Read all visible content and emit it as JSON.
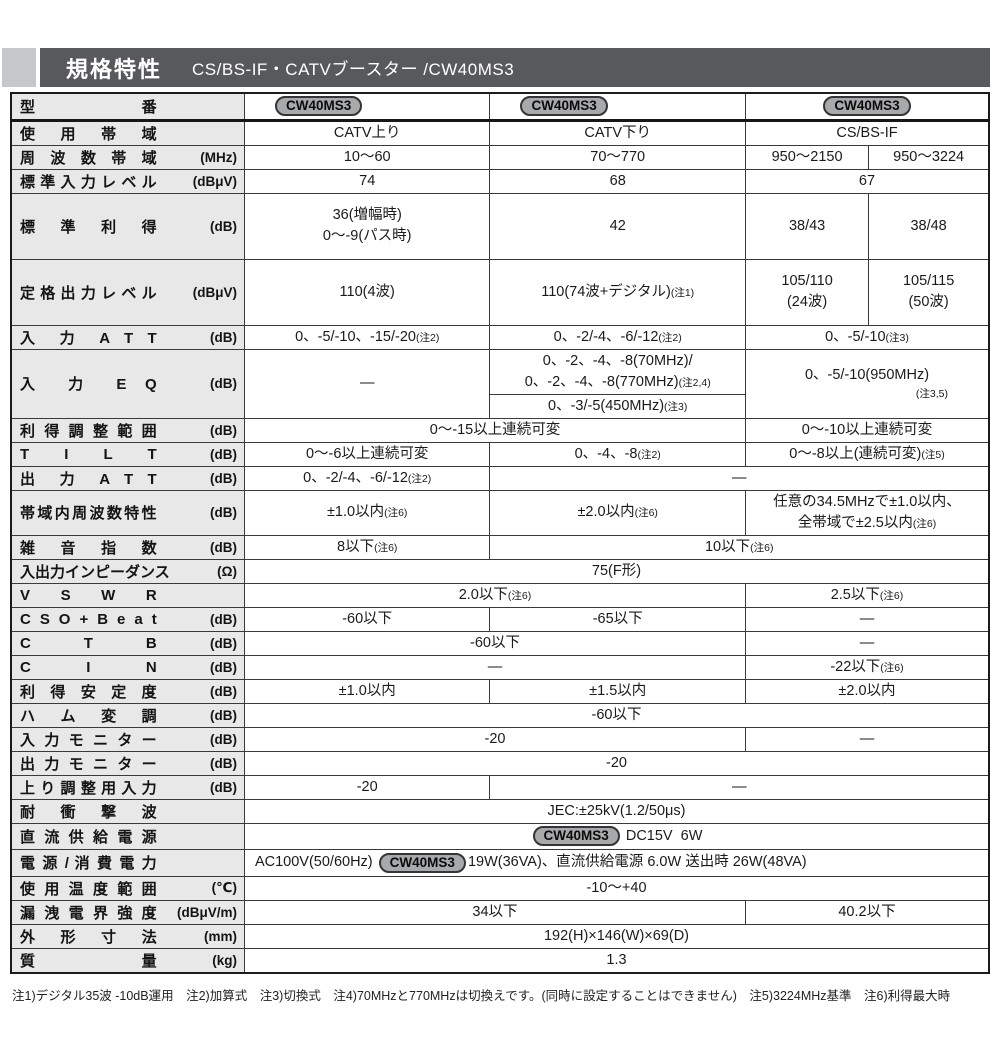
{
  "header": {
    "title": "規格特性",
    "subtitle": "CS/BS-IF・CATVブースター /CW40MS3"
  },
  "model_badge": "CW40MS3",
  "table": {
    "rows": [
      {
        "key": "model-number",
        "label": "型 番",
        "unit": "",
        "cells": [
          {
            "span": 1,
            "align": "bleft",
            "lines": [
              [
                {
                  "b": "CW40MS3"
                }
              ]
            ]
          },
          {
            "span": 1,
            "align": "bleft",
            "lines": [
              [
                {
                  "b": "CW40MS3"
                }
              ]
            ]
          },
          {
            "span": 2,
            "lines": [
              [
                {
                  "b": "CW40MS3"
                }
              ]
            ]
          }
        ]
      },
      {
        "key": "band-usage",
        "label": "使 用 帯 域",
        "unit": "",
        "cells": [
          {
            "span": 1,
            "lines": [
              [
                {
                  "t": "CATV上り"
                }
              ]
            ]
          },
          {
            "span": 1,
            "lines": [
              [
                {
                  "t": "CATV下り"
                }
              ]
            ]
          },
          {
            "span": 2,
            "lines": [
              [
                {
                  "t": "CS/BS-IF"
                }
              ]
            ]
          }
        ]
      },
      {
        "key": "frequency-range",
        "label": "周 波 数 帯 域",
        "unit": "(MHz)",
        "cells": [
          {
            "span": 1,
            "lines": [
              [
                {
                  "t": "10〜60"
                }
              ]
            ]
          },
          {
            "span": 1,
            "lines": [
              [
                {
                  "t": "70〜770"
                }
              ]
            ]
          },
          {
            "span": 1,
            "lines": [
              [
                {
                  "t": "950〜2150"
                }
              ]
            ]
          },
          {
            "span": 1,
            "lines": [
              [
                {
                  "t": "950〜3224"
                }
              ]
            ]
          }
        ]
      },
      {
        "key": "standard-input-level",
        "label": "標準入力レベル",
        "unit": "(dBμV)",
        "cells": [
          {
            "span": 1,
            "lines": [
              [
                {
                  "t": "74"
                }
              ]
            ]
          },
          {
            "span": 1,
            "lines": [
              [
                {
                  "t": "68"
                }
              ]
            ]
          },
          {
            "span": 2,
            "lines": [
              [
                {
                  "t": "67"
                }
              ]
            ]
          }
        ]
      },
      {
        "key": "standard-gain",
        "label": "標 準 利 得",
        "unit": "(dB)",
        "cells": [
          {
            "span": 1,
            "lines": [
              [
                {
                  "t": "36(増幅時)"
                }
              ],
              [
                {
                  "t": "0〜-9(パス時)"
                }
              ]
            ]
          },
          {
            "span": 1,
            "lines": [
              [
                {
                  "t": "42"
                }
              ]
            ]
          },
          {
            "span": 1,
            "lines": [
              [
                {
                  "t": "38/43"
                }
              ]
            ]
          },
          {
            "span": 1,
            "lines": [
              [
                {
                  "t": "38/48"
                }
              ]
            ]
          }
        ]
      },
      {
        "key": "rated-output-level",
        "label": "定格出力レベル",
        "unit": "(dBμV)",
        "cells": [
          {
            "span": 1,
            "lines": [
              [
                {
                  "t": "110(4波)"
                }
              ]
            ]
          },
          {
            "span": 1,
            "lines": [
              [
                {
                  "t": "110(74波+デジタル)"
                },
                {
                  "n": "(注1)"
                }
              ]
            ]
          },
          {
            "span": 1,
            "lines": [
              [
                {
                  "t": "105/110"
                }
              ],
              [
                {
                  "t": "(24波)"
                }
              ]
            ]
          },
          {
            "span": 1,
            "lines": [
              [
                {
                  "t": "105/115"
                }
              ],
              [
                {
                  "t": "(50波)"
                }
              ]
            ]
          }
        ]
      },
      {
        "key": "input-att",
        "label": "入 力 A T T",
        "unit": "(dB)",
        "cells": [
          {
            "span": 1,
            "lines": [
              [
                {
                  "t": "0、-5/-10、-15/-20"
                },
                {
                  "n": "(注2)"
                }
              ]
            ]
          },
          {
            "span": 1,
            "lines": [
              [
                {
                  "t": "0、-2/-4、-6/-12"
                },
                {
                  "n": "(注2)"
                }
              ]
            ]
          },
          {
            "span": 2,
            "lines": [
              [
                {
                  "t": "0、-5/-10"
                },
                {
                  "n": "(注3)"
                }
              ]
            ]
          }
        ]
      },
      {
        "key": "input-eq",
        "label": "入 力 E Q",
        "unit": "(dB)",
        "labelRowspan": 2,
        "cells": [
          {
            "span": 1,
            "rowspan": 2,
            "lines": [
              [
                {
                  "t": "—"
                }
              ]
            ]
          },
          {
            "span": 1,
            "lines": [
              [
                {
                  "t": "0、-2、-4、-8(70MHz)/"
                }
              ],
              [
                {
                  "t": "0、-2、-4、-8(770MHz)"
                },
                {
                  "n": "(注2,4)"
                }
              ]
            ]
          },
          {
            "span": 2,
            "rowspan": 2,
            "lines": [
              [
                {
                  "t": "0、-5/-10(950MHz)"
                }
              ],
              [
                {
                  "n": "(注3,5)",
                  "r": 1
                }
              ]
            ]
          }
        ]
      },
      {
        "key": "input-eq",
        "cont": true,
        "cells": [
          {
            "span": 1,
            "lines": [
              [
                {
                  "t": "0、-3/-5(450MHz)"
                },
                {
                  "n": "(注3)"
                }
              ]
            ]
          }
        ]
      },
      {
        "key": "gain-adjust-range",
        "label": "利 得 調 整 範 囲",
        "unit": "(dB)",
        "cells": [
          {
            "span": 2,
            "lines": [
              [
                {
                  "t": "0〜-15以上連続可変"
                }
              ]
            ]
          },
          {
            "span": 2,
            "lines": [
              [
                {
                  "t": "0〜-10以上連続可変"
                }
              ]
            ]
          }
        ]
      },
      {
        "key": "tilt",
        "label": "T I L T",
        "unit": "(dB)",
        "cells": [
          {
            "span": 1,
            "lines": [
              [
                {
                  "t": "0〜-6以上連続可変"
                }
              ]
            ]
          },
          {
            "span": 1,
            "lines": [
              [
                {
                  "t": "0、-4、-8"
                },
                {
                  "n": "(注2)"
                }
              ]
            ]
          },
          {
            "span": 2,
            "lines": [
              [
                {
                  "t": "0〜-8以上(連続可変)"
                },
                {
                  "n": "(注5)"
                }
              ]
            ]
          }
        ]
      },
      {
        "key": "output-att",
        "label": "出 力 A T T",
        "unit": "(dB)",
        "cells": [
          {
            "span": 1,
            "lines": [
              [
                {
                  "t": "0、-2/-4、-6/-12"
                },
                {
                  "n": "(注2)"
                }
              ]
            ]
          },
          {
            "span": 3,
            "lines": [
              [
                {
                  "t": "—"
                }
              ]
            ]
          }
        ]
      },
      {
        "key": "in-band-flatness",
        "label": "帯域内周波数特性",
        "unit": "(dB)",
        "cells": [
          {
            "span": 1,
            "lines": [
              [
                {
                  "t": "±1.0以内"
                },
                {
                  "n": "(注6)"
                }
              ]
            ]
          },
          {
            "span": 1,
            "lines": [
              [
                {
                  "t": "±2.0以内"
                },
                {
                  "n": "(注6)"
                }
              ]
            ]
          },
          {
            "span": 2,
            "lines": [
              [
                {
                  "t": "任意の34.5MHzで±1.0以内、"
                }
              ],
              [
                {
                  "t": "全帯域で±2.5以内"
                },
                {
                  "n": "(注6)"
                }
              ]
            ]
          }
        ]
      },
      {
        "key": "noise-figure",
        "label": "雑 音 指 数",
        "unit": "(dB)",
        "cells": [
          {
            "span": 1,
            "lines": [
              [
                {
                  "t": "8以下"
                },
                {
                  "n": "(注6)"
                }
              ]
            ]
          },
          {
            "span": 3,
            "lines": [
              [
                {
                  "t": "10以下"
                },
                {
                  "n": "(注6)"
                }
              ]
            ]
          }
        ]
      },
      {
        "key": "impedance",
        "label": "入出力インピーダンス",
        "unit": "(Ω)",
        "cells": [
          {
            "span": 4,
            "lines": [
              [
                {
                  "t": "75(F形)"
                }
              ]
            ]
          }
        ]
      },
      {
        "key": "vswr",
        "label": "V S W R",
        "unit": "",
        "cells": [
          {
            "span": 2,
            "lines": [
              [
                {
                  "t": "2.0以下"
                },
                {
                  "n": "(注6)"
                }
              ]
            ]
          },
          {
            "span": 2,
            "lines": [
              [
                {
                  "t": "2.5以下"
                },
                {
                  "n": "(注6)"
                }
              ]
            ]
          }
        ]
      },
      {
        "key": "cso-beat",
        "label": "C S O + B e a t",
        "unit": "(dB)",
        "cells": [
          {
            "span": 1,
            "lines": [
              [
                {
                  "t": "-60以下"
                }
              ]
            ]
          },
          {
            "span": 1,
            "lines": [
              [
                {
                  "t": "-65以下"
                }
              ]
            ]
          },
          {
            "span": 2,
            "lines": [
              [
                {
                  "t": "—"
                }
              ]
            ]
          }
        ]
      },
      {
        "key": "ctb",
        "label": "C T B",
        "unit": "(dB)",
        "cells": [
          {
            "span": 2,
            "lines": [
              [
                {
                  "t": "-60以下"
                }
              ]
            ]
          },
          {
            "span": 2,
            "lines": [
              [
                {
                  "t": "—"
                }
              ]
            ]
          }
        ]
      },
      {
        "key": "cin",
        "label": "C I N",
        "unit": "(dB)",
        "cells": [
          {
            "span": 2,
            "lines": [
              [
                {
                  "t": "—"
                }
              ]
            ]
          },
          {
            "span": 2,
            "lines": [
              [
                {
                  "t": "-22以下"
                },
                {
                  "n": "(注6)"
                }
              ]
            ]
          }
        ]
      },
      {
        "key": "gain-stability",
        "label": "利 得 安 定 度",
        "unit": "(dB)",
        "cells": [
          {
            "span": 1,
            "lines": [
              [
                {
                  "t": "±1.0以内"
                }
              ]
            ]
          },
          {
            "span": 1,
            "lines": [
              [
                {
                  "t": "±1.5以内"
                }
              ]
            ]
          },
          {
            "span": 2,
            "lines": [
              [
                {
                  "t": "±2.0以内"
                }
              ]
            ]
          }
        ]
      },
      {
        "key": "hum-modulation",
        "label": "ハ ム 変 調",
        "unit": "(dB)",
        "cells": [
          {
            "span": 4,
            "lines": [
              [
                {
                  "t": "-60以下"
                }
              ]
            ]
          }
        ]
      },
      {
        "key": "input-monitor",
        "label": "入 力 モ ニ タ ー",
        "unit": "(dB)",
        "cells": [
          {
            "span": 2,
            "lines": [
              [
                {
                  "t": "-20"
                }
              ]
            ]
          },
          {
            "span": 2,
            "lines": [
              [
                {
                  "t": "—"
                }
              ]
            ]
          }
        ]
      },
      {
        "key": "output-monitor",
        "label": "出 力 モ ニ タ ー",
        "unit": "(dB)",
        "cells": [
          {
            "span": 4,
            "lines": [
              [
                {
                  "t": "-20"
                }
              ]
            ]
          }
        ]
      },
      {
        "key": "upstream-adjust-input",
        "label": "上り調整用入力",
        "unit": "(dB)",
        "cells": [
          {
            "span": 1,
            "lines": [
              [
                {
                  "t": "-20"
                }
              ]
            ]
          },
          {
            "span": 3,
            "lines": [
              [
                {
                  "t": "—"
                }
              ]
            ]
          }
        ]
      },
      {
        "key": "surge-immunity",
        "label": "耐 衝 撃 波",
        "unit": "",
        "cells": [
          {
            "span": 4,
            "lines": [
              [
                {
                  "t": "JEC:±25kV(1.2/50μs)"
                }
              ]
            ]
          }
        ]
      },
      {
        "key": "dc-power-supply",
        "label": "直 流 供 給 電 源",
        "unit": "",
        "cells": [
          {
            "span": 4,
            "lines": [
              [
                {
                  "b": "CW40MS3"
                },
                {
                  "t": " DC15V  6W"
                }
              ]
            ]
          }
        ]
      },
      {
        "key": "power-consumption",
        "label": "電 源 / 消 費 電 力",
        "unit": "",
        "cells": [
          {
            "span": 4,
            "align": "left",
            "lines": [
              [
                {
                  "t": "AC100V(50/60Hz) "
                },
                {
                  "b": "CW40MS3"
                },
                {
                  "t": "19W(36VA)、直流供給電源 6.0W 送出時 26W(48VA)"
                }
              ]
            ]
          }
        ]
      },
      {
        "key": "operating-temp",
        "label": "使 用 温 度 範 囲",
        "unit": "(℃)",
        "cells": [
          {
            "span": 4,
            "lines": [
              [
                {
                  "t": "-10〜+40"
                }
              ]
            ]
          }
        ]
      },
      {
        "key": "leakage-field-strength",
        "label": "漏 洩 電 界 強 度",
        "unit": "(dBμV/m)",
        "cells": [
          {
            "span": 2,
            "lines": [
              [
                {
                  "t": "34以下"
                }
              ]
            ]
          },
          {
            "span": 2,
            "lines": [
              [
                {
                  "t": "40.2以下"
                }
              ]
            ]
          }
        ]
      },
      {
        "key": "dimensions",
        "label": "外 形 寸 法",
        "unit": "(mm)",
        "cells": [
          {
            "span": 4,
            "lines": [
              [
                {
                  "t": "192(H)×146(W)×69(D)"
                }
              ]
            ]
          }
        ]
      },
      {
        "key": "weight",
        "label": "質 量",
        "unit": "(kg)",
        "cells": [
          {
            "span": 4,
            "lines": [
              [
                {
                  "t": "1.3"
                }
              ]
            ]
          }
        ]
      }
    ]
  },
  "footnote": "注1)デジタル35波 -10dB運用　注2)加算式　注3)切換式　注4)70MHzと770MHzは切換えです。(同時に設定することはできません)　注5)3224MHz基準　注6)利得最大時"
}
